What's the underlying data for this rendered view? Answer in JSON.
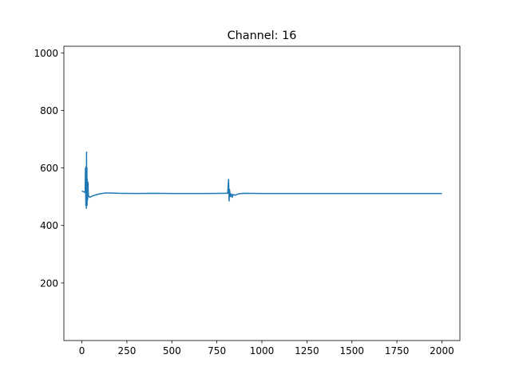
{
  "chart_data": {
    "type": "line",
    "title": "Channel: 16",
    "x": [
      0,
      10,
      18,
      20,
      22,
      24,
      25,
      26,
      27,
      28,
      29,
      30,
      32,
      34,
      36,
      40,
      45,
      50,
      60,
      80,
      100,
      130,
      160,
      200,
      300,
      400,
      500,
      600,
      700,
      800,
      810,
      815,
      818,
      820,
      825,
      830,
      835,
      840,
      850,
      870,
      900,
      1000,
      1100,
      1200,
      1300,
      1400,
      1500,
      1600,
      1700,
      1800,
      1900,
      2000
    ],
    "series": [
      {
        "color": "#1f77b4",
        "values": [
          520,
          517,
          515,
          600,
          470,
          605,
          460,
          655,
          480,
          600,
          470,
          560,
          490,
          550,
          505,
          500,
          498,
          500,
          503,
          507,
          510,
          513,
          513,
          512,
          511,
          512,
          511,
          511,
          511,
          512,
          512,
          560,
          485,
          525,
          500,
          510,
          498,
          508,
          505,
          510,
          512,
          511,
          511,
          511,
          511,
          511,
          511,
          511,
          511,
          511,
          511,
          511
        ]
      }
    ],
    "xlim": [
      -100,
      2100
    ],
    "xticks": [
      0,
      250,
      500,
      750,
      1000,
      1250,
      1500,
      1750,
      2000
    ],
    "ylim": [
      0,
      1023
    ],
    "yticks": [
      200,
      400,
      600,
      800,
      1000
    ]
  }
}
